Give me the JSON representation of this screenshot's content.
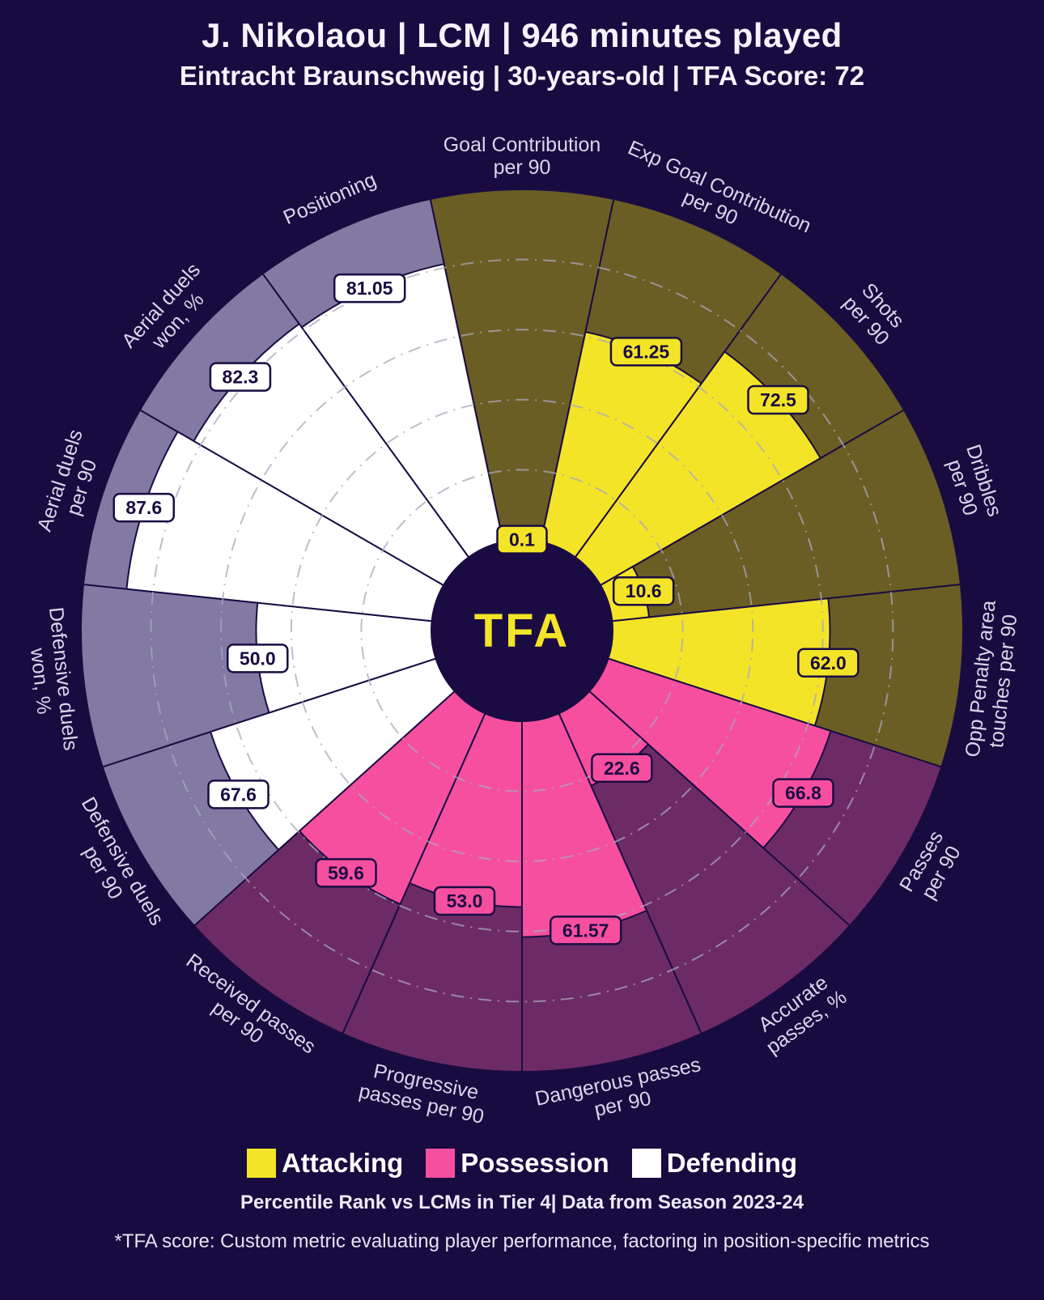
{
  "header": {
    "title": "J. Nikolaou | LCM | 946 minutes played",
    "subtitle": "Eintracht Braunschweig | 30-years-old | TFA Score: 72"
  },
  "center_logo": "TFA",
  "chart_data": {
    "type": "pizza",
    "unit": "percentile",
    "max": 100,
    "grid_ticks": [
      20,
      40,
      60,
      80
    ],
    "outline": "#1a0c42",
    "grid_color": "#aaa7bb",
    "label_color": "#d9d6ea",
    "center_bg": "#1a0c42",
    "groups": [
      {
        "name": "Attacking",
        "fill": "#f3e428",
        "bg": "#6b5e25"
      },
      {
        "name": "Possession",
        "fill": "#f74f9f",
        "bg": "#6d2b66"
      },
      {
        "name": "Defending",
        "fill": "#ffffff",
        "bg": "#827aa3"
      }
    ],
    "slices": [
      {
        "label": [
          "Goal Contribution",
          "per 90"
        ],
        "value": 0.1,
        "display": "0.1",
        "group": 0
      },
      {
        "label": [
          "Exp Goal Contribution",
          "per 90"
        ],
        "value": 61.25,
        "display": "61.25",
        "group": 0
      },
      {
        "label": [
          "Shots",
          "per 90"
        ],
        "value": 72.5,
        "display": "72.5",
        "group": 0
      },
      {
        "label": [
          "Dribbles",
          "per 90"
        ],
        "value": 10.6,
        "display": "10.6",
        "group": 0
      },
      {
        "label": [
          "Opp Penalty area",
          "touches per 90"
        ],
        "value": 62.0,
        "display": "62.0",
        "group": 0
      },
      {
        "label": [
          "Passes",
          "per 90"
        ],
        "value": 66.8,
        "display": "66.8",
        "group": 1
      },
      {
        "label": [
          "Accurate",
          "passes, %"
        ],
        "value": 22.6,
        "display": "22.6",
        "group": 1
      },
      {
        "label": [
          "Dangerous passes",
          "per 90"
        ],
        "value": 61.57,
        "display": "61.57",
        "group": 1
      },
      {
        "label": [
          "Progressive",
          "passes per 90"
        ],
        "value": 53.0,
        "display": "53.0",
        "group": 1
      },
      {
        "label": [
          "Received passes",
          "per 90"
        ],
        "value": 59.6,
        "display": "59.6",
        "group": 1
      },
      {
        "label": [
          "Defensive duels",
          "per 90"
        ],
        "value": 67.6,
        "display": "67.6",
        "group": 2
      },
      {
        "label": [
          "Defensive duels",
          "won, %"
        ],
        "value": 50.0,
        "display": "50.0",
        "group": 2
      },
      {
        "label": [
          "Aerial duels",
          "per 90"
        ],
        "value": 87.6,
        "display": "87.6",
        "group": 2
      },
      {
        "label": [
          "Aerial duels",
          "won, %"
        ],
        "value": 82.3,
        "display": "82.3",
        "group": 2
      },
      {
        "label": [
          "Positioning"
        ],
        "value": 81.05,
        "display": "81.05",
        "group": 2
      }
    ]
  },
  "legend": [
    {
      "label": "Attacking",
      "color": "#f3e428"
    },
    {
      "label": "Possession",
      "color": "#f74f9f"
    },
    {
      "label": "Defending",
      "color": "#ffffff"
    }
  ],
  "caption": "Percentile Rank vs LCMs in Tier 4| Data from Season 2023-24",
  "footnote": "*TFA score: Custom metric evaluating player performance, factoring in position-specific metrics"
}
